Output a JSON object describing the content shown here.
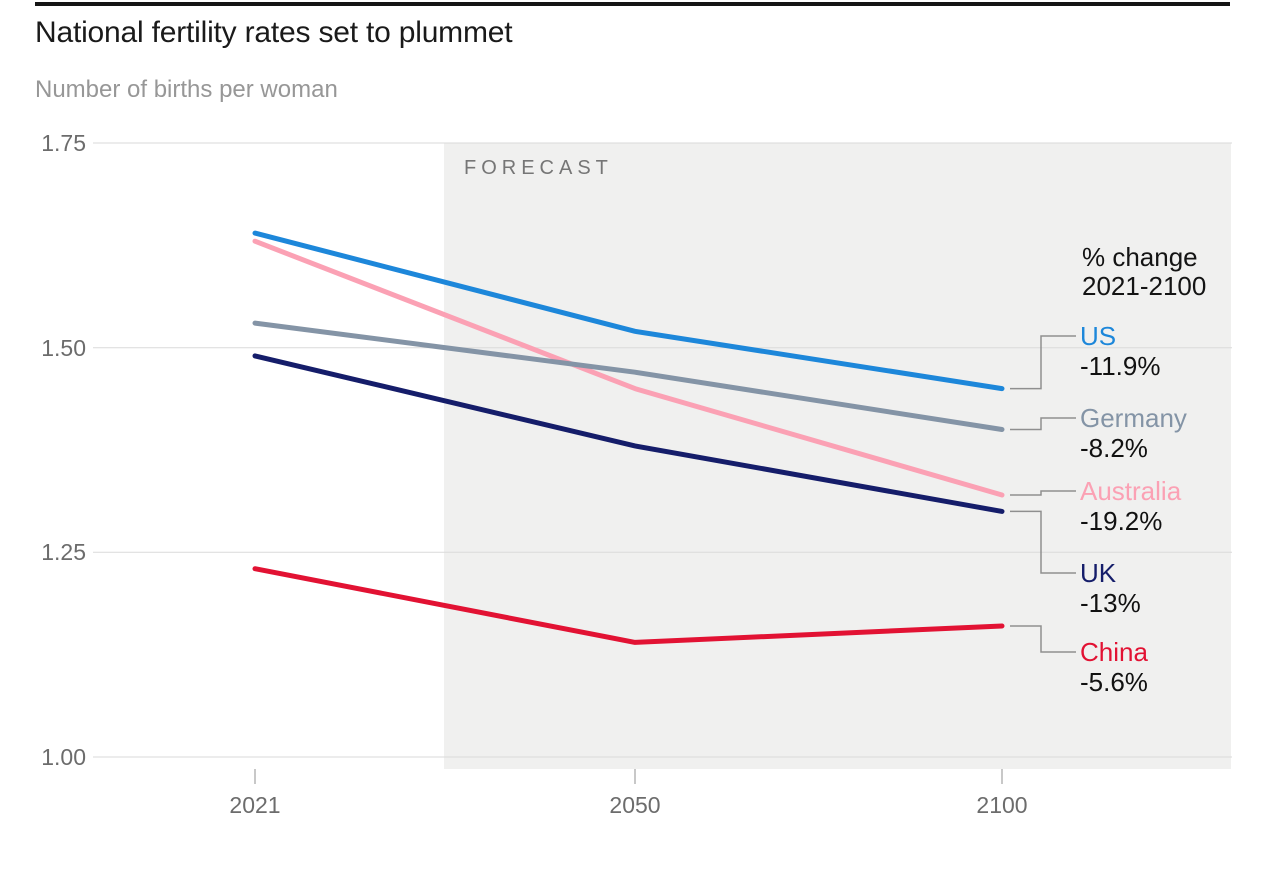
{
  "header": {
    "title": "National fertility rates set to plummet",
    "subtitle": "Number of births per woman"
  },
  "chart_data": {
    "type": "line",
    "title": "National fertility rates set to plummet",
    "ylabel": "Number of births per woman",
    "x_categories": [
      "2021",
      "2050",
      "2100"
    ],
    "y_ticks": [
      "1.75",
      "1.50",
      "1.25",
      "1.00"
    ],
    "ylim": [
      1.0,
      1.75
    ],
    "grid": "horizontal",
    "forecast": {
      "label": "FORECAST",
      "starts_between": "2021 and 2050"
    },
    "annotation_header": {
      "line1": "% change",
      "line2": "2021-2100"
    },
    "legend_position": "right",
    "series": [
      {
        "name": "US",
        "color": "#1d87da",
        "values": [
          1.64,
          1.52,
          1.45
        ],
        "pct_change": "-11.9%"
      },
      {
        "name": "Germany",
        "color": "#8494a6",
        "values": [
          1.53,
          1.47,
          1.4
        ],
        "pct_change": "-8.2%"
      },
      {
        "name": "Australia",
        "color": "#fba1b4",
        "values": [
          1.63,
          1.45,
          1.32
        ],
        "pct_change": "-19.2%"
      },
      {
        "name": "UK",
        "color": "#151d6a",
        "values": [
          1.49,
          1.38,
          1.3
        ],
        "pct_change": "-13%"
      },
      {
        "name": "China",
        "color": "#e21233",
        "values": [
          1.23,
          1.14,
          1.16
        ],
        "pct_change": "-5.6%"
      }
    ]
  },
  "colors": {
    "forecast_bg": "#f0f0ef",
    "gridline": "#dadada",
    "connector": "#8f8f8f",
    "axis_text": "#6c6c6c",
    "forecast_text": "#767676",
    "title_text": "#1a1a1a",
    "subtitle_text": "#979797",
    "change_text": "#111111",
    "top_rule": "#151515"
  }
}
